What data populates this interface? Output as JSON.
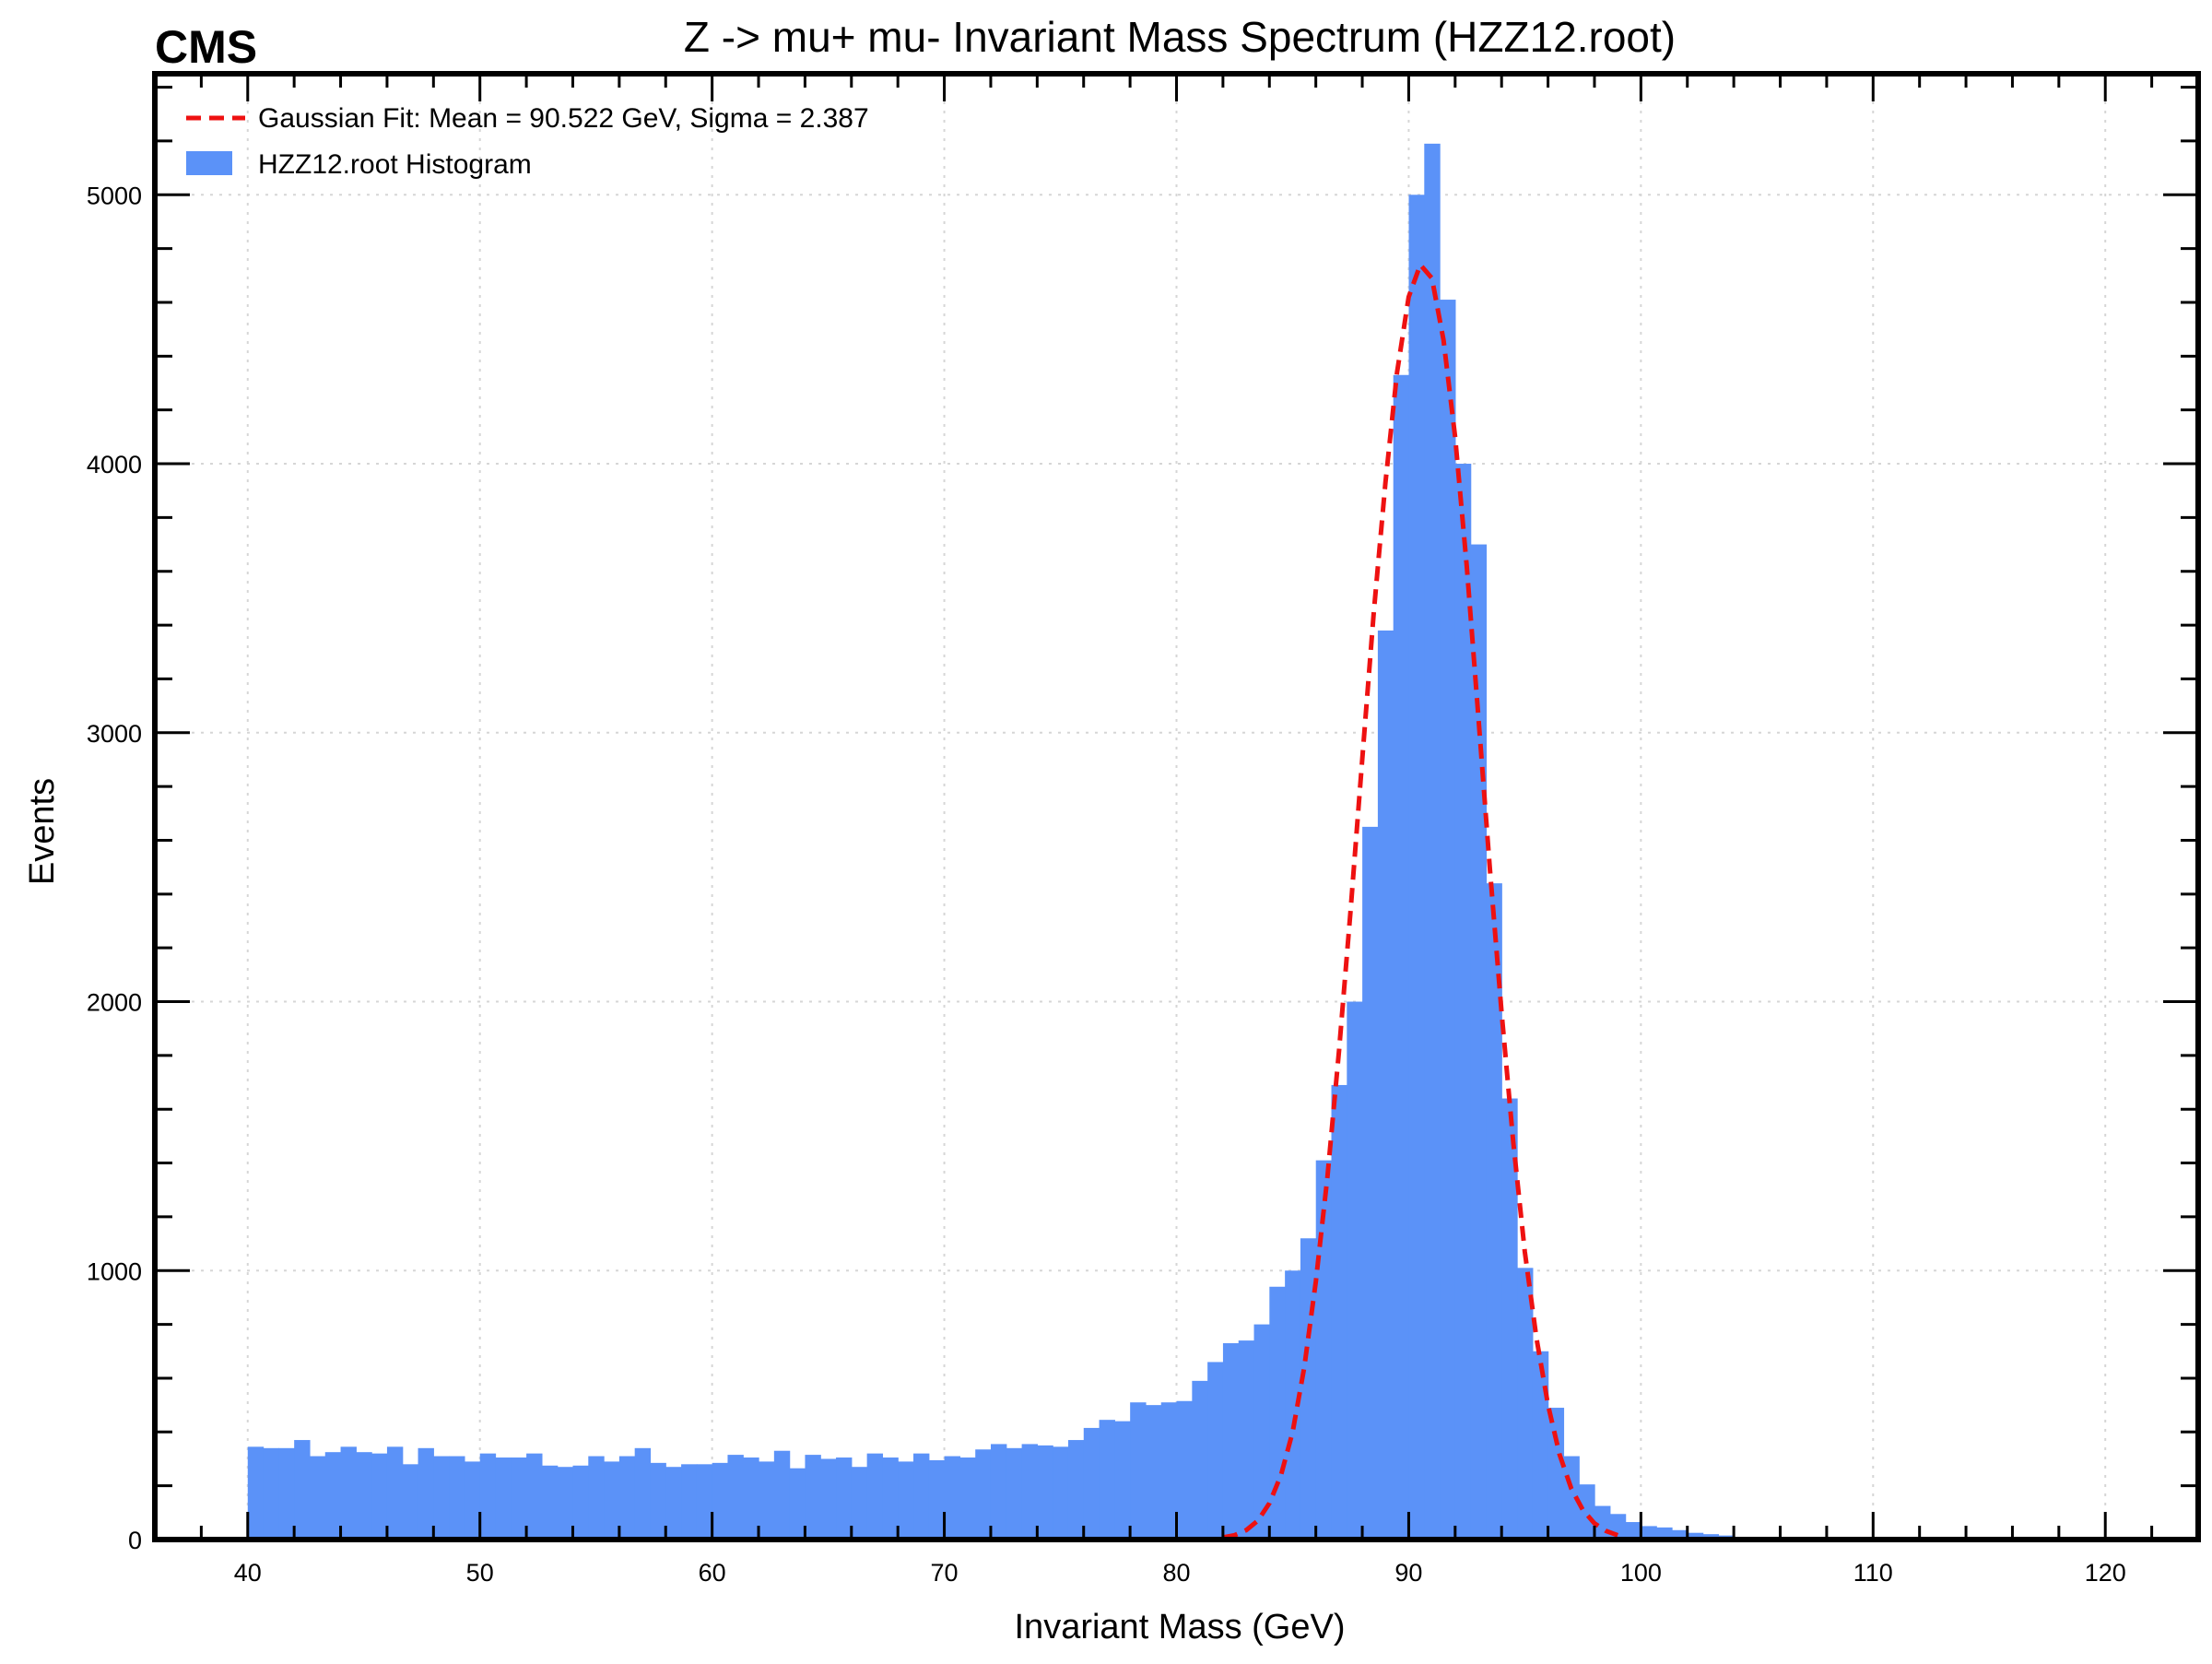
{
  "chart_data": {
    "type": "bar",
    "experiment_label": "CMS",
    "title": "Z -> mu+ mu- Invariant Mass Spectrum (HZZ12.root)",
    "xlabel": "Invariant Mass (GeV)",
    "ylabel": "Events",
    "xlim": [
      36,
      124
    ],
    "ylim": [
      0,
      5450
    ],
    "x_ticks": [
      40,
      50,
      60,
      70,
      80,
      90,
      100,
      110,
      120
    ],
    "y_ticks": [
      0,
      1000,
      2000,
      3000,
      4000,
      5000
    ],
    "grid": true,
    "legend_position": "top-left",
    "bin_width": 0.6667,
    "bin_start": 40,
    "series": [
      {
        "name": "HZZ12.root Histogram",
        "kind": "histogram",
        "color": "#5b92f8",
        "values": [
          345,
          340,
          340,
          370,
          310,
          325,
          345,
          325,
          320,
          345,
          280,
          340,
          310,
          310,
          290,
          320,
          305,
          305,
          320,
          275,
          270,
          275,
          310,
          290,
          310,
          340,
          285,
          270,
          280,
          280,
          285,
          315,
          305,
          290,
          330,
          265,
          315,
          300,
          305,
          270,
          320,
          305,
          290,
          320,
          295,
          310,
          305,
          335,
          355,
          340,
          355,
          350,
          345,
          370,
          415,
          445,
          440,
          510,
          500,
          510,
          515,
          590,
          660,
          730,
          740,
          800,
          940,
          1000,
          1120,
          1410,
          1690,
          2000,
          2650,
          3380,
          4330,
          5000,
          5190,
          4610,
          4000,
          3700,
          2440,
          1640,
          1010,
          700,
          490,
          310,
          205,
          125,
          95,
          65,
          50,
          45,
          35,
          25,
          20,
          15,
          10,
          8,
          7,
          6,
          5,
          4,
          3,
          3,
          2,
          2,
          2,
          1,
          1,
          1,
          1,
          1,
          1,
          1,
          1,
          1,
          0,
          0,
          0,
          0
        ]
      },
      {
        "name": "Gaussian Fit: Mean = 90.522 GeV, Sigma = 2.387",
        "kind": "fit_curve",
        "color": "#ee1111",
        "x": [
          82,
          82.5,
          83,
          83.5,
          84,
          84.5,
          85,
          85.5,
          86,
          86.5,
          87,
          87.5,
          88,
          88.5,
          89,
          89.5,
          90,
          90.5,
          91,
          91.5,
          92,
          92.5,
          93,
          93.5,
          94,
          94.5,
          95,
          95.5,
          96,
          96.5,
          97,
          97.5,
          98,
          98.5,
          99
        ],
        "y": [
          8,
          16,
          35,
          70,
          135,
          240,
          400,
          640,
          960,
          1350,
          1820,
          2340,
          2900,
          3450,
          3930,
          4340,
          4620,
          4740,
          4690,
          4460,
          4100,
          3620,
          3060,
          2490,
          1960,
          1480,
          1070,
          750,
          500,
          315,
          190,
          110,
          60,
          32,
          16
        ]
      }
    ]
  }
}
